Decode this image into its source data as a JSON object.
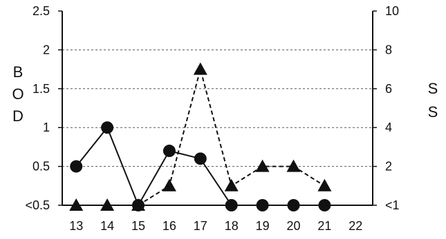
{
  "chart_data": {
    "type": "line",
    "x": [
      13,
      14,
      15,
      16,
      17,
      18,
      19,
      20,
      21
    ],
    "x_ticks": [
      "13",
      "14",
      "15",
      "16",
      "17",
      "18",
      "19",
      "20",
      "21",
      "22"
    ],
    "xlim": [
      12.55,
      22.55
    ],
    "y_left": {
      "label_letters": [
        "B",
        "O",
        "D"
      ],
      "ylim": [
        0,
        2.5
      ],
      "ticks": [
        {
          "value": 0,
          "label": "<0.5"
        },
        {
          "value": 0.5,
          "label": "0.5"
        },
        {
          "value": 1,
          "label": "1"
        },
        {
          "value": 1.5,
          "label": "1.5"
        },
        {
          "value": 2,
          "label": "2"
        },
        {
          "value": 2.5,
          "label": "2.5"
        }
      ]
    },
    "y_right": {
      "label_letters": [
        "S",
        "S"
      ],
      "ylim": [
        0,
        10
      ],
      "ticks": [
        {
          "value": 0,
          "label": "<1"
        },
        {
          "value": 2,
          "label": "2"
        },
        {
          "value": 4,
          "label": "4"
        },
        {
          "value": 6,
          "label": "6"
        },
        {
          "value": 8,
          "label": "8"
        },
        {
          "value": 10,
          "label": "10"
        }
      ]
    },
    "grid": "horizontal-dashed",
    "series": [
      {
        "axis": "left",
        "marker": "circle",
        "line_style": "solid",
        "values": [
          0.5,
          1.0,
          0,
          0.7,
          0.6,
          0,
          0,
          0,
          0
        ]
      },
      {
        "axis": "right",
        "marker": "triangle",
        "line_style": "dashed",
        "values": [
          0,
          0,
          0,
          1.0,
          7.0,
          1.0,
          2.0,
          2.0,
          1.0
        ]
      }
    ],
    "colors": {
      "ink": "#111111",
      "grid": "#555555",
      "background": "#ffffff"
    }
  }
}
